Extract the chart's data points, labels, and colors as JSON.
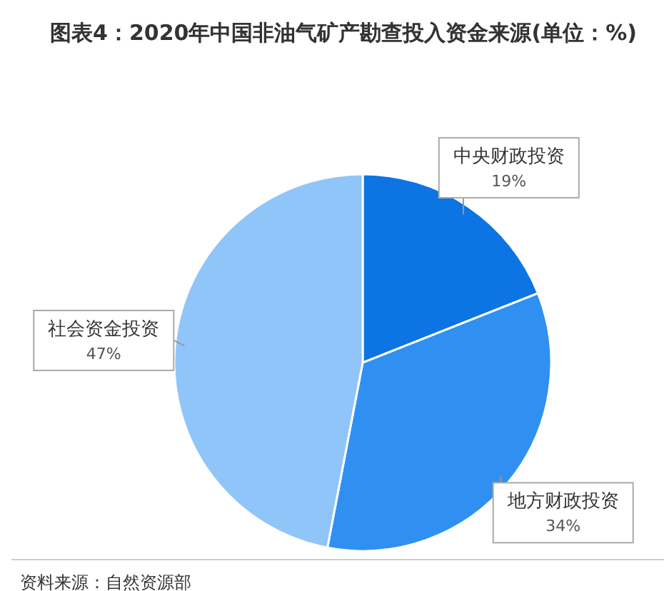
{
  "chart_data": {
    "type": "pie",
    "title": "图表4：2020年中国非油气矿产勘查投入资金来源(单位：%)",
    "categories": [
      "中央财政投资",
      "地方财政投资",
      "社会资金投资"
    ],
    "values": [
      19,
      34,
      47
    ],
    "value_labels": [
      "19%",
      "34%",
      "47%"
    ],
    "colors": [
      "#0d74e3",
      "#2f90f2",
      "#90c5fa"
    ],
    "annotations": [
      "资料来源：自然资源部"
    ]
  }
}
